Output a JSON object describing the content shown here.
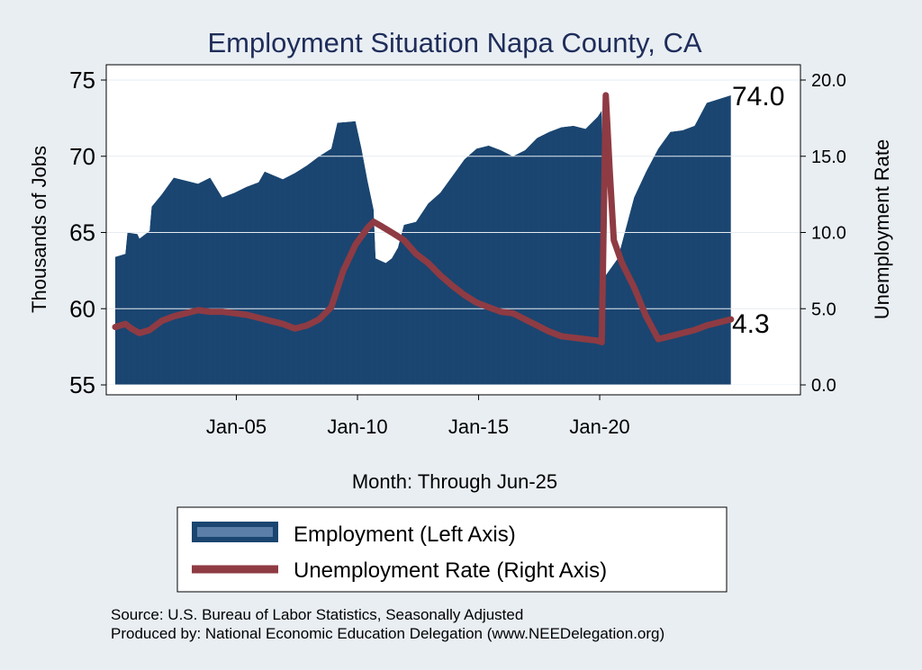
{
  "chart_data": {
    "type": "area",
    "title": "Employment Situation Napa  County, CA",
    "ylabel": "Thousands of Jobs",
    "y2label": "Unemployment Rate",
    "xlabel": "Month: Through Jun-25",
    "ylim": [
      55,
      75
    ],
    "y2lim": [
      0,
      20
    ],
    "yticks": [
      "55",
      "60",
      "65",
      "70",
      "75"
    ],
    "y2ticks": [
      "0.0",
      "5.0",
      "10.0",
      "15.0",
      "20.0"
    ],
    "xticks": [
      "Jan-05",
      "Jan-10",
      "Jan-15",
      "Jan-20"
    ],
    "grid": true,
    "legend_placement": "bottom",
    "colors": {
      "employment": "#1a4570",
      "unemployment": "#8f3b43",
      "background": "#e9eef3",
      "plot": "#ffffff"
    },
    "end_labels": {
      "employment": "74.0",
      "unemployment": "4.3"
    },
    "series": [
      {
        "name": "Employment (Left Axis)",
        "axis": "left",
        "points": [
          [
            "2000-01",
            63.4
          ],
          [
            "2000-06",
            63.6
          ],
          [
            "2000-07",
            65.0
          ],
          [
            "2000-12",
            64.9
          ],
          [
            "2001-01",
            64.6
          ],
          [
            "2001-06",
            65.1
          ],
          [
            "2001-07",
            66.7
          ],
          [
            "2001-12",
            67.5
          ],
          [
            "2002-06",
            68.6
          ],
          [
            "2002-12",
            68.4
          ],
          [
            "2003-06",
            68.2
          ],
          [
            "2003-12",
            68.6
          ],
          [
            "2004-06",
            67.3
          ],
          [
            "2004-12",
            67.6
          ],
          [
            "2005-06",
            68.0
          ],
          [
            "2005-12",
            68.3
          ],
          [
            "2006-03",
            69.0
          ],
          [
            "2006-12",
            68.5
          ],
          [
            "2007-06",
            68.9
          ],
          [
            "2007-12",
            69.4
          ],
          [
            "2008-06",
            70.0
          ],
          [
            "2008-12",
            70.5
          ],
          [
            "2009-03",
            72.2
          ],
          [
            "2009-12",
            72.3
          ],
          [
            "2010-03",
            70.5
          ],
          [
            "2010-06",
            68.4
          ],
          [
            "2010-09",
            66.5
          ],
          [
            "2010-10",
            63.3
          ],
          [
            "2011-03",
            63.0
          ],
          [
            "2011-06",
            63.3
          ],
          [
            "2011-09",
            64.0
          ],
          [
            "2011-12",
            65.5
          ],
          [
            "2012-06",
            65.7
          ],
          [
            "2012-12",
            66.9
          ],
          [
            "2013-06",
            67.6
          ],
          [
            "2013-12",
            68.7
          ],
          [
            "2014-06",
            69.8
          ],
          [
            "2014-12",
            70.5
          ],
          [
            "2015-06",
            70.7
          ],
          [
            "2015-12",
            70.4
          ],
          [
            "2016-06",
            70.0
          ],
          [
            "2016-12",
            70.4
          ],
          [
            "2017-06",
            71.2
          ],
          [
            "2017-12",
            71.6
          ],
          [
            "2018-06",
            71.9
          ],
          [
            "2018-12",
            72.0
          ],
          [
            "2019-06",
            71.8
          ],
          [
            "2019-12",
            72.6
          ],
          [
            "2020-02",
            73.0
          ],
          [
            "2020-04",
            62.2
          ],
          [
            "2020-10",
            63.3
          ],
          [
            "2021-06",
            67.3
          ],
          [
            "2021-12",
            69.0
          ],
          [
            "2022-06",
            70.5
          ],
          [
            "2022-12",
            71.6
          ],
          [
            "2023-06",
            71.7
          ],
          [
            "2023-12",
            72.0
          ],
          [
            "2024-06",
            73.5
          ],
          [
            "2025-06",
            74.0
          ]
        ]
      },
      {
        "name": "Unemployment Rate (Right Axis)",
        "axis": "right",
        "points": [
          [
            "2000-01",
            3.8
          ],
          [
            "2000-06",
            4.0
          ],
          [
            "2000-09",
            3.7
          ],
          [
            "2001-01",
            3.4
          ],
          [
            "2001-06",
            3.6
          ],
          [
            "2001-12",
            4.2
          ],
          [
            "2002-06",
            4.5
          ],
          [
            "2002-12",
            4.7
          ],
          [
            "2003-06",
            4.9
          ],
          [
            "2003-12",
            4.8
          ],
          [
            "2004-06",
            4.8
          ],
          [
            "2004-12",
            4.7
          ],
          [
            "2005-06",
            4.6
          ],
          [
            "2005-12",
            4.4
          ],
          [
            "2006-06",
            4.2
          ],
          [
            "2006-12",
            4.0
          ],
          [
            "2007-06",
            3.7
          ],
          [
            "2007-12",
            3.9
          ],
          [
            "2008-06",
            4.3
          ],
          [
            "2008-12",
            5.1
          ],
          [
            "2009-06",
            7.5
          ],
          [
            "2009-12",
            9.2
          ],
          [
            "2010-06",
            10.3
          ],
          [
            "2010-09",
            10.7
          ],
          [
            "2011-01",
            10.4
          ],
          [
            "2011-06",
            10.0
          ],
          [
            "2011-12",
            9.5
          ],
          [
            "2012-06",
            8.6
          ],
          [
            "2012-12",
            8.0
          ],
          [
            "2013-06",
            7.2
          ],
          [
            "2013-12",
            6.5
          ],
          [
            "2014-06",
            5.9
          ],
          [
            "2014-12",
            5.4
          ],
          [
            "2015-06",
            5.1
          ],
          [
            "2015-12",
            4.8
          ],
          [
            "2016-06",
            4.7
          ],
          [
            "2016-12",
            4.3
          ],
          [
            "2017-06",
            3.9
          ],
          [
            "2017-12",
            3.5
          ],
          [
            "2018-06",
            3.2
          ],
          [
            "2018-12",
            3.1
          ],
          [
            "2019-06",
            3.0
          ],
          [
            "2019-12",
            2.9
          ],
          [
            "2020-02",
            2.8
          ],
          [
            "2020-04",
            19.0
          ],
          [
            "2020-06",
            14.0
          ],
          [
            "2020-08",
            9.5
          ],
          [
            "2020-12",
            8.0
          ],
          [
            "2021-06",
            6.4
          ],
          [
            "2021-12",
            4.5
          ],
          [
            "2022-06",
            3.0
          ],
          [
            "2022-12",
            3.2
          ],
          [
            "2023-06",
            3.4
          ],
          [
            "2023-12",
            3.6
          ],
          [
            "2024-06",
            3.9
          ],
          [
            "2024-12",
            4.1
          ],
          [
            "2025-06",
            4.3
          ]
        ]
      }
    ]
  },
  "legend": {
    "items": [
      {
        "label": "Employment (Left Axis)",
        "color": "#1a4570",
        "kind": "area"
      },
      {
        "label": "Unemployment Rate (Right Axis)",
        "color": "#8f3b43",
        "kind": "line"
      }
    ]
  },
  "notes": {
    "source": "Source: U.S. Bureau of Labor Statistics, Seasonally Adjusted",
    "produced_by": "Produced by: National Economic Education Delegation (www.NEEDelegation.org)"
  }
}
